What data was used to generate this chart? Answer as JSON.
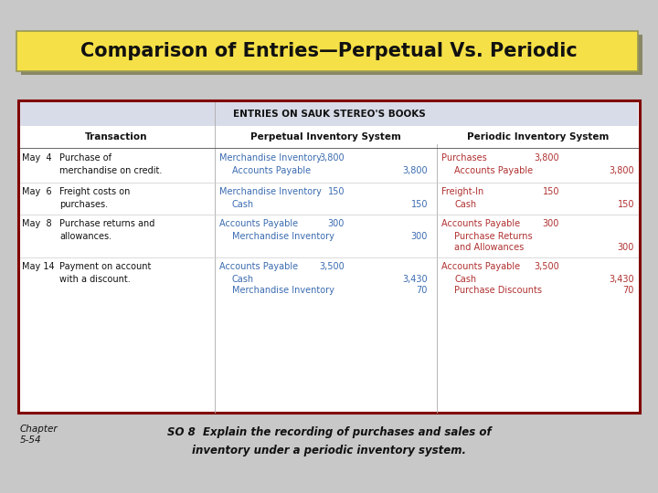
{
  "title": "Comparison of Entries—Perpetual Vs. Periodic",
  "title_bg": "#F5E047",
  "title_shadow": "#888866",
  "bg_color": "#C8C8C8",
  "table_header": "ENTRIES ON SAUK STEREO'S BOOKS",
  "table_header_bg": "#D8DCE8",
  "table_border_outer": "#800000",
  "col_headers": [
    "Transaction",
    "Perpetual Inventory System",
    "Periodic Inventory System"
  ],
  "blue": "#3A6BB0",
  "red": "#B03030",
  "black": "#111111",
  "footer_chapter": "Chapter\n5-54",
  "footer_so": "SO 8  Explain the recording of purchases and sales of\ninventory under a periodic inventory system."
}
